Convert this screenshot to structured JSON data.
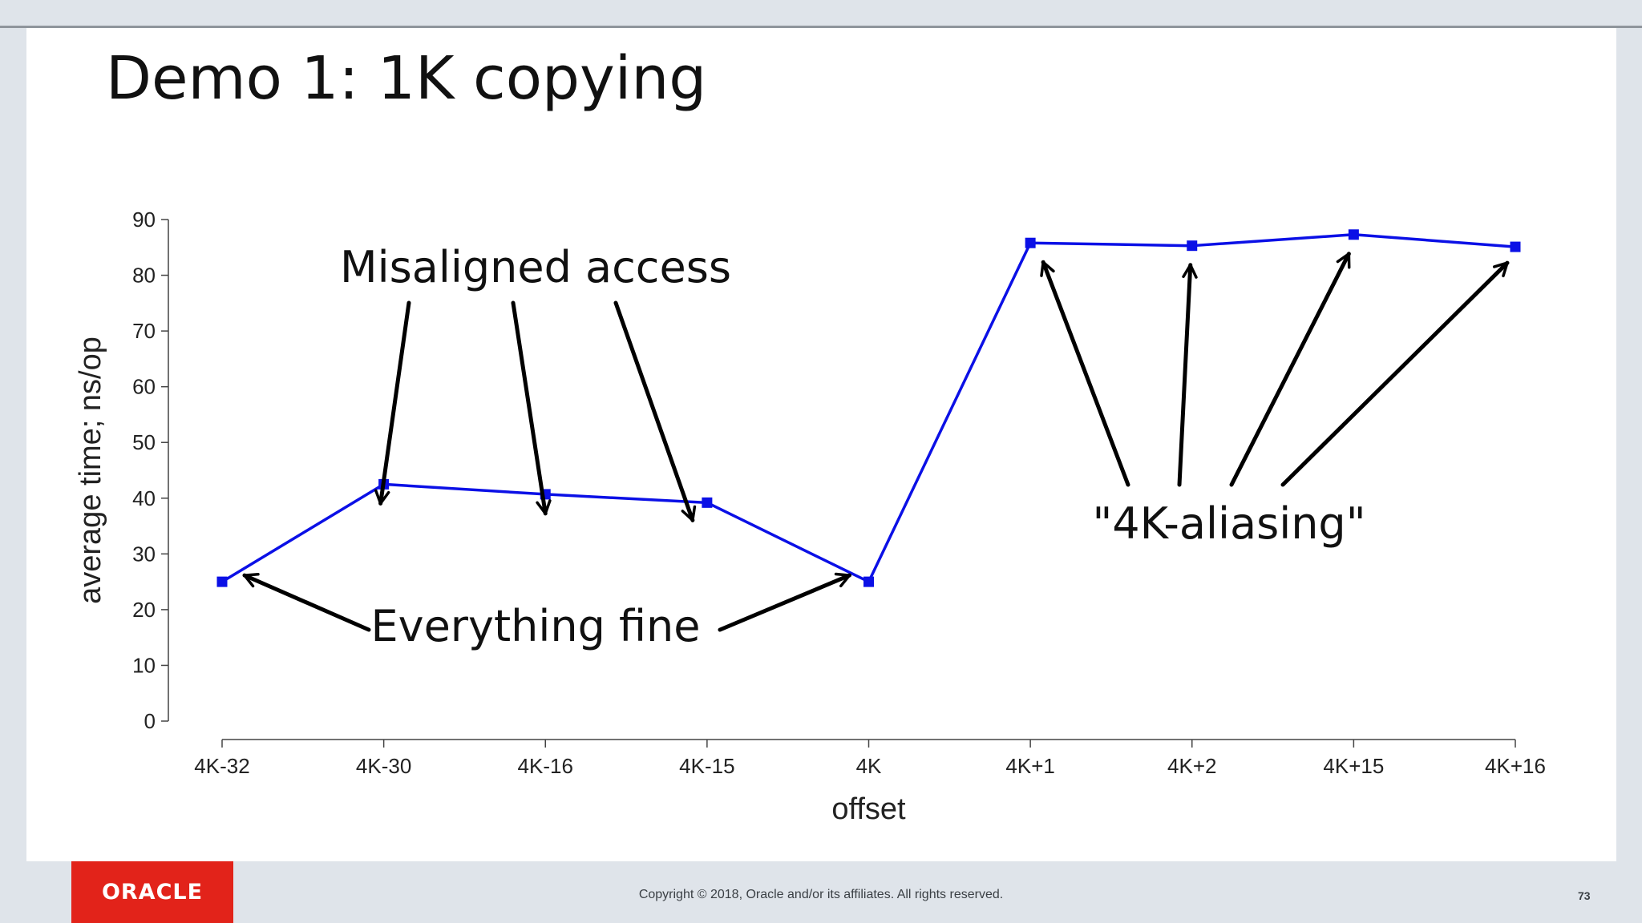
{
  "slide": {
    "title": "Demo 1: 1K copying",
    "footer_copyright": "Copyright © 2018, Oracle and/or its affiliates. All rights reserved.",
    "page_number": "73",
    "logo_text": "ORACLE",
    "brand_color": "#e2231a"
  },
  "chart_data": {
    "type": "line",
    "categories": [
      "4K-32",
      "4K-30",
      "4K-16",
      "4K-15",
      "4K",
      "4K+1",
      "4K+2",
      "4K+15",
      "4K+16"
    ],
    "series": [
      {
        "values": [
          25,
          42.5,
          40.7,
          39.2,
          25,
          85.8,
          85.3,
          87.3,
          85.1
        ],
        "color": "#0b10e6"
      }
    ],
    "xlabel": "offset",
    "ylabel": "average time; ns/op",
    "ylim": [
      0,
      90
    ],
    "yticks": [
      0,
      10,
      20,
      30,
      40,
      50,
      60,
      70,
      80,
      90
    ],
    "grid": false,
    "annotations": [
      {
        "text": "Misaligned access",
        "targets": [
          "4K-30",
          "4K-16",
          "4K-15"
        ]
      },
      {
        "text": "Everything fine",
        "targets": [
          "4K-32",
          "4K"
        ]
      },
      {
        "text": "\"4K-aliasing\"",
        "targets": [
          "4K+1",
          "4K+2",
          "4K+15",
          "4K+16"
        ]
      }
    ]
  }
}
